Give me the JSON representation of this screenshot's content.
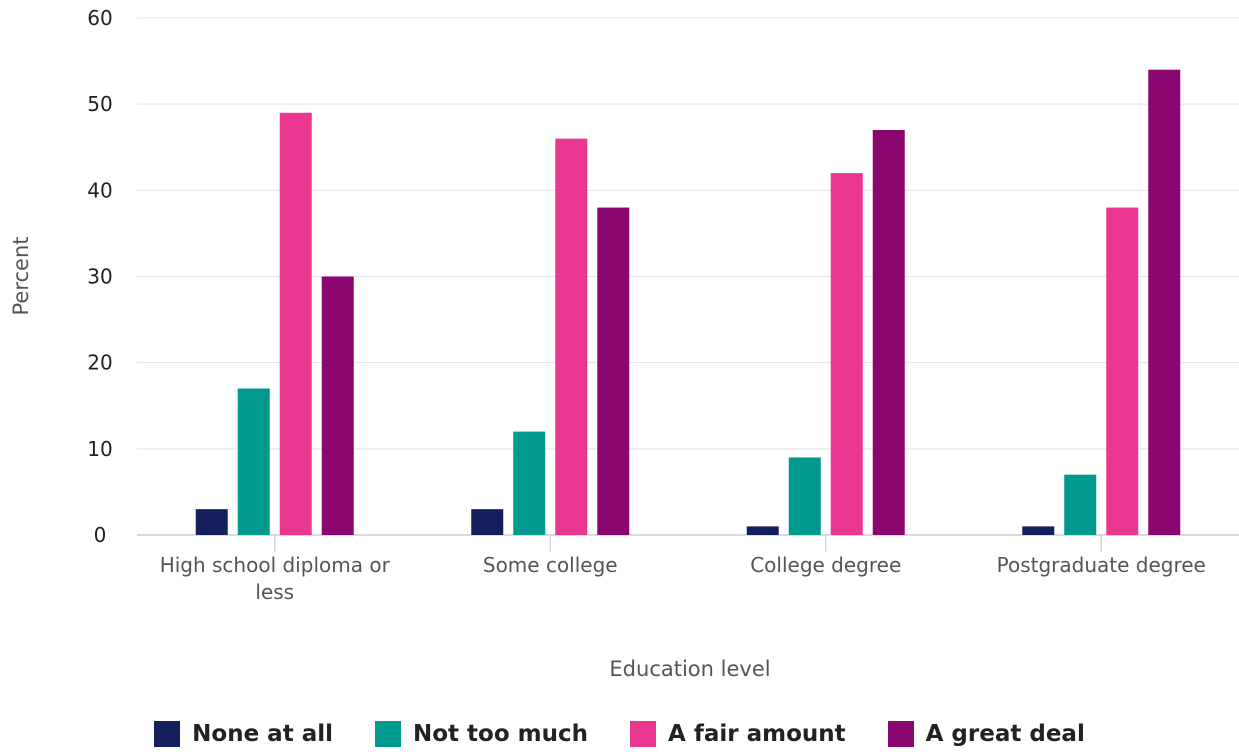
{
  "chart_data": {
    "type": "bar",
    "categories": [
      "High school diploma or less",
      "Some college",
      "College degree",
      "Postgraduate degree"
    ],
    "category_lines": [
      [
        "High school diploma or",
        "less"
      ],
      [
        "Some college"
      ],
      [
        "College degree"
      ],
      [
        "Postgraduate degree"
      ]
    ],
    "series": [
      {
        "name": "None at all",
        "color": "#13205c",
        "values": [
          3,
          3,
          1,
          1
        ]
      },
      {
        "name": "Not too much",
        "color": "#009990",
        "values": [
          17,
          12,
          9,
          7
        ]
      },
      {
        "name": "A fair amount",
        "color": "#ea3891",
        "values": [
          49,
          46,
          42,
          38
        ]
      },
      {
        "name": "A great deal",
        "color": "#8a0771",
        "values": [
          30,
          38,
          47,
          54
        ]
      }
    ],
    "xlabel": "Education level",
    "ylabel": "Percent",
    "ylim": [
      0,
      60
    ],
    "yticks": [
      0,
      10,
      20,
      30,
      40,
      50,
      60
    ],
    "grid": true,
    "legend_position": "bottom"
  }
}
